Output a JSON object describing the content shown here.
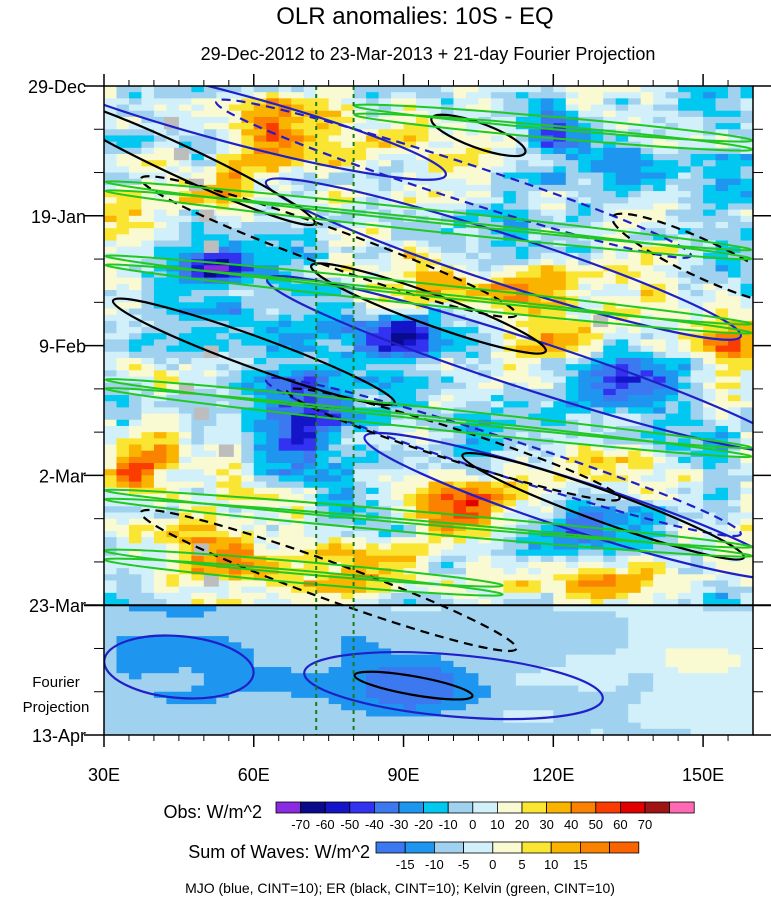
{
  "chart_data": {
    "type": "heatmap",
    "title": "OLR anomalies: 10S - EQ",
    "subtitle": "29-Dec-2012 to 23-Mar-2013 + 21-day Fourier Projection",
    "x_axis": {
      "range": [
        30,
        160
      ],
      "ticks": [
        30,
        60,
        90,
        120,
        150
      ],
      "tick_labels": [
        "30E",
        "60E",
        "90E",
        "120E",
        "150E"
      ]
    },
    "y_axis": {
      "range_days": [
        0,
        105
      ],
      "ticks_days": [
        0,
        21,
        42,
        63,
        84,
        105
      ],
      "tick_labels": [
        "29-Dec",
        "19-Jan",
        "9-Feb",
        "2-Mar",
        "23-Mar",
        "13-Apr"
      ],
      "observation_end_day": 84
    },
    "projection_label": [
      "Fourier",
      "Projection"
    ],
    "reference_lines_lon": [
      72.5,
      80
    ],
    "colorbars": [
      {
        "label": "Obs: W/m^2",
        "levels": [
          -70,
          -60,
          -50,
          -40,
          -30,
          -20,
          -10,
          0,
          10,
          20,
          30,
          40,
          50,
          60,
          70
        ],
        "colors": [
          "#8a2be2",
          "#0a0a8c",
          "#1414c8",
          "#3232f0",
          "#3c78f0",
          "#1e96f0",
          "#00c8f0",
          "#a0d2f0",
          "#d2f0fa",
          "#fafad2",
          "#fae632",
          "#fab400",
          "#fa8200",
          "#fa3c00",
          "#e10000",
          "#a01414",
          "#ff69b4"
        ]
      },
      {
        "label": "Sum of Waves: W/m^2",
        "levels": [
          -15,
          -10,
          -5,
          0,
          5,
          10,
          15
        ],
        "colors": [
          "#3c78f0",
          "#1e96f0",
          "#a0d2f0",
          "#d2f0fa",
          "#fafad2",
          "#fae632",
          "#fab400",
          "#fa8200",
          "#fa6400"
        ]
      }
    ],
    "observed_features": [
      {
        "lon": 100,
        "day": 8,
        "value": 35,
        "sigma_lon": 7,
        "sigma_day": 4
      },
      {
        "lon": 65,
        "day": 8,
        "value": 40,
        "sigma_lon": 8,
        "sigma_day": 4
      },
      {
        "lon": 48,
        "day": 16,
        "value": 35,
        "sigma_lon": 10,
        "sigma_day": 3
      },
      {
        "lon": 122,
        "day": 8,
        "value": -35,
        "sigma_lon": 5,
        "sigma_day": 3
      },
      {
        "lon": 135,
        "day": 12,
        "value": -30,
        "sigma_lon": 6,
        "sigma_day": 4
      },
      {
        "lon": 52,
        "day": 29,
        "value": -50,
        "sigma_lon": 4,
        "sigma_day": 2
      },
      {
        "lon": 118,
        "day": 33,
        "value": 45,
        "sigma_lon": 10,
        "sigma_day": 3
      },
      {
        "lon": 95,
        "day": 33,
        "value": 35,
        "sigma_lon": 6,
        "sigma_day": 3
      },
      {
        "lon": 92,
        "day": 40,
        "value": -55,
        "sigma_lon": 7,
        "sigma_day": 3
      },
      {
        "lon": 120,
        "day": 42,
        "value": 40,
        "sigma_lon": 8,
        "sigma_day": 3
      },
      {
        "lon": 156,
        "day": 42,
        "value": 45,
        "sigma_lon": 4,
        "sigma_day": 3
      },
      {
        "lon": 42,
        "day": 40,
        "value": -30,
        "sigma_lon": 8,
        "sigma_day": 3
      },
      {
        "lon": 136,
        "day": 47,
        "value": -40,
        "sigma_lon": 8,
        "sigma_day": 3
      },
      {
        "lon": 80,
        "day": 47,
        "value": -25,
        "sigma_lon": 10,
        "sigma_day": 4
      },
      {
        "lon": 36,
        "day": 62,
        "value": 45,
        "sigma_lon": 5,
        "sigma_day": 3
      },
      {
        "lon": 100,
        "day": 68,
        "value": 50,
        "sigma_lon": 8,
        "sigma_day": 3
      },
      {
        "lon": 68,
        "day": 56,
        "value": -30,
        "sigma_lon": 6,
        "sigma_day": 4
      },
      {
        "lon": 105,
        "day": 58,
        "value": -25,
        "sigma_lon": 8,
        "sigma_day": 3
      },
      {
        "lon": 132,
        "day": 62,
        "value": 30,
        "sigma_lon": 10,
        "sigma_day": 4
      },
      {
        "lon": 148,
        "day": 57,
        "value": -30,
        "sigma_lon": 6,
        "sigma_day": 4
      },
      {
        "lon": 82,
        "day": 78,
        "value": 50,
        "sigma_lon": 8,
        "sigma_day": 3
      },
      {
        "lon": 135,
        "day": 80,
        "value": 45,
        "sigma_lon": 10,
        "sigma_day": 3
      },
      {
        "lon": 50,
        "day": 76,
        "value": 30,
        "sigma_lon": 12,
        "sigma_day": 4
      },
      {
        "lon": 125,
        "day": 72,
        "value": -25,
        "sigma_lon": 8,
        "sigma_day": 3
      }
    ],
    "projection_features": [
      {
        "lon": 92,
        "day": 97,
        "value": -15,
        "sigma_lon": 7,
        "sigma_day": 3
      },
      {
        "lon": 50,
        "day": 92,
        "value": -5,
        "sigma_lon": 20,
        "sigma_day": 8
      },
      {
        "lon": 150,
        "day": 93,
        "value": 8,
        "sigma_lon": 8,
        "sigma_day": 6
      }
    ],
    "missing_data_blocks": [
      {
        "lon": 42,
        "day": 5
      },
      {
        "lon": 44,
        "day": 10
      },
      {
        "lon": 47,
        "day": 15
      },
      {
        "lon": 49,
        "day": 20
      },
      {
        "lon": 50,
        "day": 25
      },
      {
        "lon": 50,
        "day": 42
      },
      {
        "lon": 45,
        "day": 48
      },
      {
        "lon": 48,
        "day": 52
      },
      {
        "lon": 53,
        "day": 58
      },
      {
        "lon": 48,
        "day": 74
      },
      {
        "lon": 50,
        "day": 79
      },
      {
        "lon": 128,
        "day": 37
      }
    ],
    "wave_contours": [
      {
        "name": "MJO",
        "color": "#2020c8",
        "cint": 10,
        "shapes": [
          {
            "type": "ellipse",
            "lon": 55,
            "day": 5,
            "rx_lon": 45,
            "ry_days": 4,
            "tilt": 15,
            "dashed": false
          },
          {
            "type": "ellipse",
            "lon": 110,
            "day": 28,
            "rx_lon": 50,
            "ry_days": 4,
            "tilt": 18,
            "dashed": false
          },
          {
            "type": "ellipse",
            "lon": 115,
            "day": 45,
            "rx_lon": 55,
            "ry_days": 4,
            "tilt": 18,
            "dashed": false
          },
          {
            "type": "ellipse",
            "lon": 125,
            "day": 68,
            "rx_lon": 45,
            "ry_days": 4,
            "tilt": 18,
            "dashed": false
          },
          {
            "type": "ellipse",
            "lon": 100,
            "day": 15,
            "rx_lon": 50,
            "ry_days": 3,
            "tilt": 18,
            "dashed": true
          },
          {
            "type": "ellipse",
            "lon": 110,
            "day": 60,
            "rx_lon": 50,
            "ry_days": 3,
            "tilt": 18,
            "dashed": true
          },
          {
            "type": "ellipse",
            "lon": 45,
            "day": 94,
            "rx_lon": 15,
            "ry_days": 5,
            "tilt": 5,
            "dashed": false
          },
          {
            "type": "ellipse",
            "lon": 100,
            "day": 97,
            "rx_lon": 30,
            "ry_days": 5,
            "tilt": 5,
            "dashed": false
          }
        ]
      },
      {
        "name": "ER",
        "color": "#000000",
        "cint": 10,
        "shapes": [
          {
            "type": "ellipse",
            "lon": 45,
            "day": 12,
            "rx_lon": 30,
            "ry_days": 2.5,
            "tilt": 25,
            "dashed": false
          },
          {
            "type": "ellipse",
            "lon": 105,
            "day": 8,
            "rx_lon": 10,
            "ry_days": 2,
            "tilt": 20,
            "dashed": false
          },
          {
            "type": "ellipse",
            "lon": 95,
            "day": 36,
            "rx_lon": 25,
            "ry_days": 2.5,
            "tilt": 20,
            "dashed": false
          },
          {
            "type": "ellipse",
            "lon": 60,
            "day": 43,
            "rx_lon": 30,
            "ry_days": 2.5,
            "tilt": 20,
            "dashed": false
          },
          {
            "type": "ellipse",
            "lon": 130,
            "day": 68,
            "rx_lon": 30,
            "ry_days": 2.5,
            "tilt": 20,
            "dashed": false
          },
          {
            "type": "ellipse",
            "lon": 92,
            "day": 97,
            "rx_lon": 12,
            "ry_days": 1.5,
            "tilt": 10,
            "dashed": false
          },
          {
            "type": "ellipse",
            "lon": 75,
            "day": 26,
            "rx_lon": 40,
            "ry_days": 3,
            "tilt": 20,
            "dashed": true
          },
          {
            "type": "ellipse",
            "lon": 100,
            "day": 58,
            "rx_lon": 35,
            "ry_days": 2.5,
            "tilt": 18,
            "dashed": true
          },
          {
            "type": "ellipse",
            "lon": 75,
            "day": 80,
            "rx_lon": 40,
            "ry_days": 3,
            "tilt": 20,
            "dashed": true
          },
          {
            "type": "ellipse",
            "lon": 150,
            "day": 28,
            "rx_lon": 20,
            "ry_days": 3,
            "tilt": 25,
            "dashed": true
          }
        ]
      },
      {
        "name": "Kelvin",
        "color": "#22c822",
        "cint": 10,
        "shapes": [
          {
            "type": "band",
            "lon": 95,
            "day": 21,
            "rx_lon": 65,
            "ry_days": 1,
            "tilt": 6,
            "dashed": false
          },
          {
            "type": "band",
            "lon": 95,
            "day": 33,
            "rx_lon": 65,
            "ry_days": 1,
            "tilt": 6,
            "dashed": false
          },
          {
            "type": "band",
            "lon": 95,
            "day": 53,
            "rx_lon": 65,
            "ry_days": 1,
            "tilt": 6,
            "dashed": false
          },
          {
            "type": "band",
            "lon": 95,
            "day": 70,
            "rx_lon": 65,
            "ry_days": 1,
            "tilt": 5,
            "dashed": false
          },
          {
            "type": "band",
            "lon": 120,
            "day": 6,
            "rx_lon": 40,
            "ry_days": 1,
            "tilt": 5,
            "dashed": false
          },
          {
            "type": "band",
            "lon": 70,
            "day": 78,
            "rx_lon": 40,
            "ry_days": 1,
            "tilt": 5,
            "dashed": false
          }
        ]
      }
    ],
    "footer": "MJO (blue, CINT=10); ER (black, CINT=10); Kelvin (green, CINT=10)"
  }
}
